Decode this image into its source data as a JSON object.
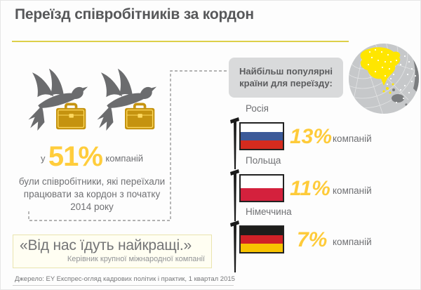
{
  "page": {
    "title": "Переїзд співробітників за кордон",
    "source": "Джерело: EY Експрес-огляд кадрових політик і практик, 1 квартал 2015"
  },
  "callout": {
    "line1": "Найбільш популярні",
    "line2": "країни для переїзду:"
  },
  "stat": {
    "prefix": "у",
    "value": "51%",
    "suffix": "компаній",
    "description_lines": {
      "0": "були співробітники, які переїхали",
      "1": "працювати за кордон з початку",
      "2": "2014 року"
    }
  },
  "quote": {
    "text": "«Від нас їдуть найкращі.»",
    "attribution": "Керівник крупної міжнародної компанії"
  },
  "countries": [
    {
      "name": "Росія",
      "value": "13%",
      "unit": "компаній",
      "flag": "russia"
    },
    {
      "name": "Польща",
      "value": "11%",
      "unit": "компаній",
      "flag": "poland"
    },
    {
      "name": "Німеччина",
      "value": "7%",
      "unit": "компаній",
      "flag": "germany"
    }
  ],
  "flags": {
    "russia": [
      "#ffffff",
      "#3c5a99",
      "#d52b1e"
    ],
    "poland": [
      "#ffffff",
      "#d4213d"
    ],
    "germany": [
      "#1d1d1b",
      "#d02127",
      "#f8c300"
    ]
  },
  "colors": {
    "accent_yellow": "#ffcd3c",
    "rule_yellow": "#ddd04a",
    "title_gray": "#57585a",
    "body_gray": "#6f7073",
    "callout_bg": "#d9dadb",
    "quote_bg": "#fffef2",
    "quote_border": "#e9e4ae",
    "bird_gray": "#6b6c6e",
    "briefcase_gold": "#c5930f",
    "globe_gray": "#c6c8ca",
    "globe_land_dark": "#7b7d7f",
    "globe_land_highlight": "#ffe600"
  },
  "chart_data": {
    "type": "bar",
    "title": "Переїзд співробітників за кордон",
    "categories": [
      "Росія",
      "Польща",
      "Німеччина"
    ],
    "values": [
      13,
      11,
      7
    ],
    "unit": "% компаній",
    "key_stat": {
      "value": 51,
      "label": "у 51% компаній були співробітники, які переїхали працювати за кордон з початку 2014 року"
    },
    "annotations": [
      "Найбільш популярні країни для переїзду:",
      "«Від нас їдуть найкращі.» — Керівник крупної міжнародної компанії"
    ],
    "source": "Джерело: EY Експрес-огляд кадрових політик і практик, 1 квартал 2015"
  }
}
